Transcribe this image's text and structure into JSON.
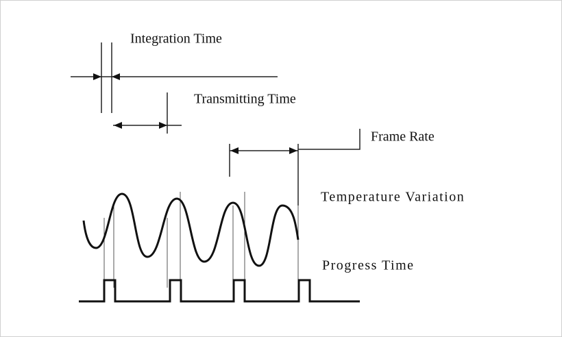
{
  "labels": {
    "integration_time": "Integration Time",
    "transmitting_time": "Transmitting Time",
    "frame_rate": "Frame Rate",
    "temperature_variation": "Temperature Variation",
    "progress_time": "Progress Time"
  }
}
